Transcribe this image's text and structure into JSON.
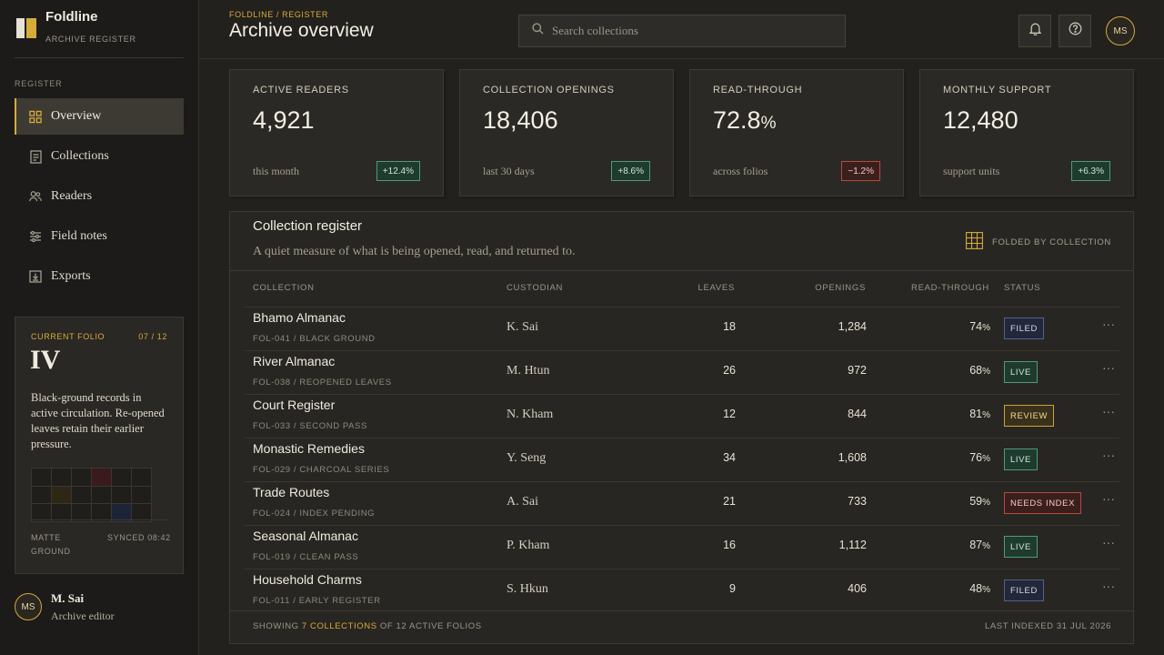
{
  "brand": {
    "name": "Foldline",
    "subtitle": "ARCHIVE REGISTER"
  },
  "sidebar": {
    "section": "REGISTER",
    "items": [
      {
        "label": "Overview",
        "icon": "grid-icon",
        "active": true
      },
      {
        "label": "Collections",
        "icon": "document-icon"
      },
      {
        "label": "Readers",
        "icon": "users-icon"
      },
      {
        "label": "Field notes",
        "icon": "sliders-icon"
      },
      {
        "label": "Exports",
        "icon": "download-icon"
      }
    ]
  },
  "folio": {
    "kicker": "CURRENT FOLIO",
    "count": "07 / 12",
    "numeral": "IV",
    "text": "Black-ground records in active circulation. Re-opened leaves retain their earlier pressure.",
    "meta_left": "MATTE GROUND",
    "meta_right": "SYNCED 08:42"
  },
  "user": {
    "initials": "MS",
    "name": "M. Sai",
    "role": "Archive editor"
  },
  "header": {
    "breadcrumb": "FOLDLINE / REGISTER",
    "title": "Archive overview",
    "search_placeholder": "Search collections",
    "avatar_initials": "MS"
  },
  "kpis": [
    {
      "label": "ACTIVE READERS",
      "value": "4,921",
      "unit": "",
      "note": "this month",
      "delta": "+12.4%",
      "trend": "pos"
    },
    {
      "label": "COLLECTION OPENINGS",
      "value": "18,406",
      "unit": "",
      "note": "last 30 days",
      "delta": "+8.6%",
      "trend": "pos"
    },
    {
      "label": "READ-THROUGH",
      "value": "72.8",
      "unit": "%",
      "note": "across folios",
      "delta": "−1.2%",
      "trend": "neg"
    },
    {
      "label": "MONTHLY SUPPORT",
      "value": "12,480",
      "unit": "",
      "note": "support units",
      "delta": "+6.3%",
      "trend": "pos"
    }
  ],
  "register": {
    "title": "Collection register",
    "subtitle": "A quiet measure of what is being opened, read, and returned to.",
    "fold_label": "FOLDED BY COLLECTION",
    "columns": [
      "COLLECTION",
      "CUSTODIAN",
      "LEAVES",
      "OPENINGS",
      "READ-THROUGH",
      "STATUS"
    ],
    "rows": [
      {
        "name": "Bhamo Almanac",
        "code": "FOL-041 / BLACK GROUND",
        "custodian": "K. Sai",
        "leaves": "18",
        "openings": "1,284",
        "read": "74",
        "status": "FILED",
        "kind": "filed"
      },
      {
        "name": "River Almanac",
        "code": "FOL-038 / REOPENED LEAVES",
        "custodian": "M. Htun",
        "leaves": "26",
        "openings": "972",
        "read": "68",
        "status": "LIVE",
        "kind": "live"
      },
      {
        "name": "Court Register",
        "code": "FOL-033 / SECOND PASS",
        "custodian": "N. Kham",
        "leaves": "12",
        "openings": "844",
        "read": "81",
        "status": "REVIEW",
        "kind": "review"
      },
      {
        "name": "Monastic Remedies",
        "code": "FOL-029 / CHARCOAL SERIES",
        "custodian": "Y. Seng",
        "leaves": "34",
        "openings": "1,608",
        "read": "76",
        "status": "LIVE",
        "kind": "live"
      },
      {
        "name": "Trade Routes",
        "code": "FOL-024 / INDEX PENDING",
        "custodian": "A. Sai",
        "leaves": "21",
        "openings": "733",
        "read": "59",
        "status": "NEEDS INDEX",
        "kind": "needs"
      },
      {
        "name": "Seasonal Almanac",
        "code": "FOL-019 / CLEAN PASS",
        "custodian": "P. Kham",
        "leaves": "16",
        "openings": "1,112",
        "read": "87",
        "status": "LIVE",
        "kind": "live"
      },
      {
        "name": "Household Charms",
        "code": "FOL-011 / EARLY REGISTER",
        "custodian": "S. Hkun",
        "leaves": "9",
        "openings": "406",
        "read": "48",
        "status": "FILED",
        "kind": "filed"
      }
    ],
    "read_unit": "%",
    "footer_prefix": "SHOWING",
    "footer_highlight": "7 COLLECTIONS",
    "footer_suffix": "OF 12 ACTIVE FOLIOS",
    "last_indexed": "LAST INDEXED 31 JUL 2026"
  },
  "colors": {
    "accent": "#d6ab3a",
    "background": "#23211e",
    "positive": "#4f9a78",
    "negative": "#b24a3f"
  }
}
